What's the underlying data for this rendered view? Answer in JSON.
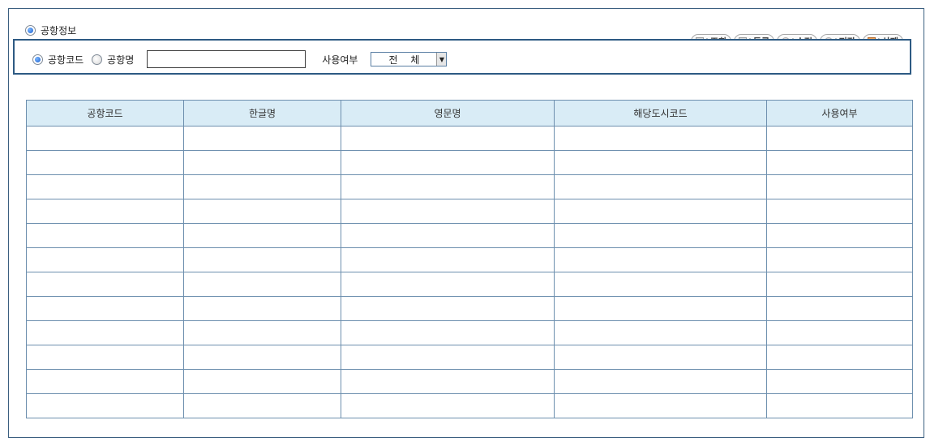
{
  "section": {
    "title": "공항정보"
  },
  "toolbar": {
    "buttons": [
      {
        "label": "조회",
        "icon": "document-icon"
      },
      {
        "label": "등록",
        "icon": "document-icon"
      },
      {
        "label": "수정",
        "icon": "gear-icon"
      },
      {
        "label": "저장",
        "icon": "gear-icon"
      },
      {
        "label": "삭제",
        "icon": "trash-icon"
      }
    ],
    "separator": "|"
  },
  "search": {
    "radio_code_label": "공항코드",
    "radio_name_label": "공항명",
    "selected_radio": "공항코드",
    "input_value": "",
    "use_label": "사용여부",
    "use_select_value": "전 체"
  },
  "table": {
    "headers": [
      "공항코드",
      "한글명",
      "영문명",
      "해당도시코드",
      "사용여부"
    ],
    "rows": [
      [
        "",
        "",
        "",
        "",
        ""
      ],
      [
        "",
        "",
        "",
        "",
        ""
      ],
      [
        "",
        "",
        "",
        "",
        ""
      ],
      [
        "",
        "",
        "",
        "",
        ""
      ],
      [
        "",
        "",
        "",
        "",
        ""
      ],
      [
        "",
        "",
        "",
        "",
        ""
      ],
      [
        "",
        "",
        "",
        "",
        ""
      ],
      [
        "",
        "",
        "",
        "",
        ""
      ],
      [
        "",
        "",
        "",
        "",
        ""
      ],
      [
        "",
        "",
        "",
        "",
        ""
      ],
      [
        "",
        "",
        "",
        "",
        ""
      ],
      [
        "",
        "",
        "",
        "",
        ""
      ]
    ]
  }
}
